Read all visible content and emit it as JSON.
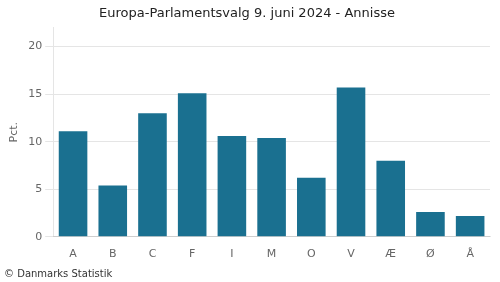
{
  "chart_data": {
    "type": "bar",
    "title": "Europa-Parlamentsvalg 9. juni 2024 - Annisse",
    "categories": [
      "A",
      "B",
      "C",
      "F",
      "I",
      "M",
      "O",
      "V",
      "Æ",
      "Ø",
      "Å"
    ],
    "values": [
      11.1,
      5.4,
      13.0,
      15.1,
      10.6,
      10.4,
      6.2,
      15.7,
      8.0,
      2.6,
      2.2
    ],
    "color": "#1a7090",
    "ylabel": "Pct.",
    "footer": "© Danmarks Statistik",
    "ylim": [
      0,
      22
    ],
    "yticks": [
      0,
      5,
      10,
      15,
      20
    ],
    "grid": true
  }
}
